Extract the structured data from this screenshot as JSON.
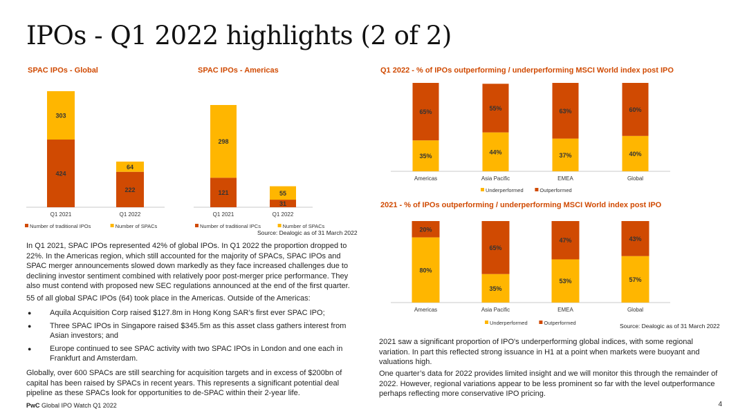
{
  "page": {
    "title": "IPOs - Q1 2022 highlights (2 of 2)",
    "footer_brand": "PwC",
    "footer_text": "Global IPO Watch Q1 2022",
    "page_number": "4"
  },
  "colors": {
    "accent": "#D04A02",
    "secondary": "#FFB600"
  },
  "text": {
    "para1": "In Q1 2021, SPAC IPOs represented 42% of global IPOs. In Q1 2022 the proportion dropped to 22%. In the Americas region, which still accounted for the majority of SPACs, SPAC IPOs and SPAC merger announcements slowed down markedly as they face increased challenges due to declining investor sentiment combined with relatively poor post-merger price performance. They also must contend with proposed new SEC regulations announced at the end of the first quarter.",
    "para2": "55 of all global SPAC IPOs (64) took place in the Americas. Outside of the Americas:",
    "bullets": [
      "Aquila Acquisition Corp raised $127.8m in Hong Kong SAR’s first ever SPAC IPO;",
      "Three SPAC IPOs in Singapore raised $345.5m as this asset class gathers interest from Asian investors; and",
      "Europe continued to see SPAC activity with two SPAC IPOs in London and one each in Frankfurt and Amsterdam."
    ],
    "para3": "Globally, over 600 SPACs are still searching for acquisition targets and in excess of $200bn of capital has been raised by SPACs in recent years. This represents a significant potential deal pipeline as these SPACs look for opportunities to de-SPAC within their 2-year life.",
    "para4": "2021 saw a significant proportion of IPO's underperforming global indices, with some regional variation. In part this reflected strong issuance in H1 at a point when markets were buoyant and valuations high.",
    "para5": "One quarter’s data for 2022 provides limited insight and we will monitor this through the remainder of 2022. However, regional variations appear to be less prominent so far with the level outperformance perhaps reflecting more conservative IPO pricing.",
    "source1": "Source: Dealogic as of 31 March 2022",
    "source2": "Source: Dealogic as of 31 March 2022"
  },
  "chart_data": [
    {
      "type": "bar",
      "stacked": true,
      "title": "SPAC IPOs - Global",
      "categories": [
        "Q1 2021",
        "Q1 2022"
      ],
      "series": [
        {
          "name": "Number of traditional IPOs",
          "values": [
            424,
            222
          ],
          "color": "#D04A02"
        },
        {
          "name": "Number of SPACs",
          "values": [
            303,
            64
          ],
          "color": "#FFB600"
        }
      ],
      "legend": "bottom"
    },
    {
      "type": "bar",
      "stacked": true,
      "title": "SPAC IPOs - Americas",
      "categories": [
        "Q1 2021",
        "Q1 2022"
      ],
      "series": [
        {
          "name": "Number of traditional IPCs",
          "values": [
            121,
            31
          ],
          "color": "#D04A02"
        },
        {
          "name": "Number of SPACs",
          "values": [
            298,
            55
          ],
          "color": "#FFB600"
        }
      ],
      "legend": "bottom"
    },
    {
      "type": "bar",
      "stacked": true,
      "percent": true,
      "title": "Q1 2022 - % of IPOs outperforming / underperforming MSCI World index post IPO",
      "categories": [
        "Americas",
        "Asia Pacific",
        "EMEA",
        "Global"
      ],
      "series": [
        {
          "name": "Underperformed",
          "values": [
            35,
            44,
            37,
            40
          ],
          "color": "#FFB600"
        },
        {
          "name": "Outperformed",
          "values": [
            65,
            55,
            63,
            60
          ],
          "color": "#D04A02"
        }
      ],
      "legend": "bottom"
    },
    {
      "type": "bar",
      "stacked": true,
      "percent": true,
      "title": "2021 - % of IPOs outperforming / underperforming MSCI World index post IPO",
      "categories": [
        "Americas",
        "Asia Pacific",
        "EMEA",
        "Global"
      ],
      "series": [
        {
          "name": "Underperformed",
          "values": [
            80,
            35,
            53,
            57
          ],
          "color": "#FFB600"
        },
        {
          "name": "Outperformed",
          "values": [
            20,
            65,
            47,
            43
          ],
          "color": "#D04A02"
        }
      ],
      "legend": "bottom"
    }
  ]
}
